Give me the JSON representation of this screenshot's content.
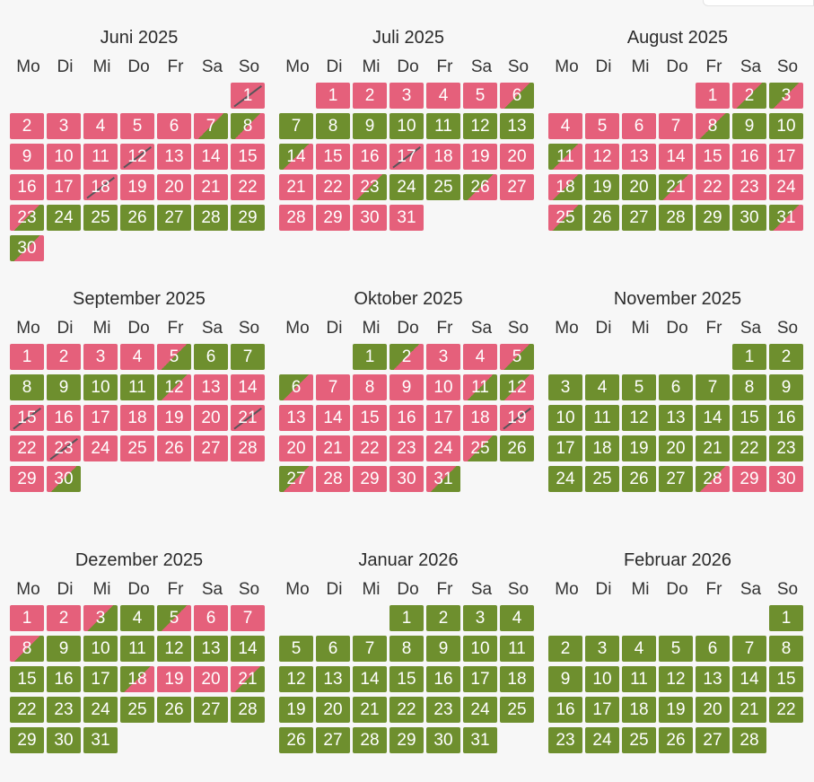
{
  "colors": {
    "booked": "#e5607b",
    "available": "#6e8f2e"
  },
  "weekdays": [
    "Mo",
    "Di",
    "Mi",
    "Do",
    "Fr",
    "Sa",
    "So"
  ],
  "months": [
    {
      "title": "Juni 2025",
      "offset": 6,
      "days": [
        [
          "1",
          "r",
          "sl"
        ],
        [
          "2",
          "r"
        ],
        [
          "3",
          "r"
        ],
        [
          "4",
          "r"
        ],
        [
          "5",
          "r"
        ],
        [
          "6",
          "r"
        ],
        [
          "7",
          "rg"
        ],
        [
          "8",
          "gr"
        ],
        [
          "9",
          "r"
        ],
        [
          "10",
          "r"
        ],
        [
          "11",
          "r"
        ],
        [
          "12",
          "r",
          "sl"
        ],
        [
          "13",
          "r"
        ],
        [
          "14",
          "r"
        ],
        [
          "15",
          "r"
        ],
        [
          "16",
          "r"
        ],
        [
          "17",
          "r"
        ],
        [
          "18",
          "r",
          "sl"
        ],
        [
          "19",
          "r"
        ],
        [
          "20",
          "r"
        ],
        [
          "21",
          "r"
        ],
        [
          "22",
          "r"
        ],
        [
          "23",
          "rg"
        ],
        [
          "24",
          "g"
        ],
        [
          "25",
          "g"
        ],
        [
          "26",
          "g"
        ],
        [
          "27",
          "g"
        ],
        [
          "28",
          "g"
        ],
        [
          "29",
          "g"
        ],
        [
          "30",
          "gr"
        ]
      ]
    },
    {
      "title": "Juli 2025",
      "offset": 1,
      "days": [
        [
          "1",
          "r"
        ],
        [
          "2",
          "r"
        ],
        [
          "3",
          "r"
        ],
        [
          "4",
          "r"
        ],
        [
          "5",
          "r"
        ],
        [
          "6",
          "rg"
        ],
        [
          "7",
          "g"
        ],
        [
          "8",
          "g"
        ],
        [
          "9",
          "g"
        ],
        [
          "10",
          "g"
        ],
        [
          "11",
          "g"
        ],
        [
          "12",
          "g"
        ],
        [
          "13",
          "g"
        ],
        [
          "14",
          "gr"
        ],
        [
          "15",
          "r"
        ],
        [
          "16",
          "r"
        ],
        [
          "17",
          "r",
          "sl"
        ],
        [
          "18",
          "r"
        ],
        [
          "19",
          "r"
        ],
        [
          "20",
          "r"
        ],
        [
          "21",
          "r"
        ],
        [
          "22",
          "r"
        ],
        [
          "23",
          "rg"
        ],
        [
          "24",
          "g"
        ],
        [
          "25",
          "g"
        ],
        [
          "26",
          "gr"
        ],
        [
          "27",
          "r"
        ],
        [
          "28",
          "r"
        ],
        [
          "29",
          "r"
        ],
        [
          "30",
          "r"
        ],
        [
          "31",
          "r"
        ]
      ]
    },
    {
      "title": "August 2025",
      "offset": 4,
      "days": [
        [
          "1",
          "r"
        ],
        [
          "2",
          "rg"
        ],
        [
          "3",
          "gr"
        ],
        [
          "4",
          "r"
        ],
        [
          "5",
          "r"
        ],
        [
          "6",
          "r"
        ],
        [
          "7",
          "r"
        ],
        [
          "8",
          "rg"
        ],
        [
          "9",
          "g"
        ],
        [
          "10",
          "g"
        ],
        [
          "11",
          "gr"
        ],
        [
          "12",
          "r"
        ],
        [
          "13",
          "r"
        ],
        [
          "14",
          "r"
        ],
        [
          "15",
          "r"
        ],
        [
          "16",
          "r"
        ],
        [
          "17",
          "r"
        ],
        [
          "18",
          "rg"
        ],
        [
          "19",
          "g"
        ],
        [
          "20",
          "g"
        ],
        [
          "21",
          "gr"
        ],
        [
          "22",
          "r"
        ],
        [
          "23",
          "r"
        ],
        [
          "24",
          "r"
        ],
        [
          "25",
          "rg"
        ],
        [
          "26",
          "g"
        ],
        [
          "27",
          "g"
        ],
        [
          "28",
          "g"
        ],
        [
          "29",
          "g"
        ],
        [
          "30",
          "g"
        ],
        [
          "31",
          "gr"
        ]
      ]
    },
    {
      "title": "September 2025",
      "offset": 0,
      "days": [
        [
          "1",
          "r"
        ],
        [
          "2",
          "r"
        ],
        [
          "3",
          "r"
        ],
        [
          "4",
          "r"
        ],
        [
          "5",
          "rg"
        ],
        [
          "6",
          "g"
        ],
        [
          "7",
          "g"
        ],
        [
          "8",
          "g"
        ],
        [
          "9",
          "g"
        ],
        [
          "10",
          "g"
        ],
        [
          "11",
          "g"
        ],
        [
          "12",
          "gr"
        ],
        [
          "13",
          "r"
        ],
        [
          "14",
          "r"
        ],
        [
          "15",
          "r",
          "sl"
        ],
        [
          "16",
          "r"
        ],
        [
          "17",
          "r"
        ],
        [
          "18",
          "r"
        ],
        [
          "19",
          "r"
        ],
        [
          "20",
          "r"
        ],
        [
          "21",
          "r",
          "sl"
        ],
        [
          "22",
          "r"
        ],
        [
          "23",
          "r",
          "sl"
        ],
        [
          "24",
          "r"
        ],
        [
          "25",
          "r"
        ],
        [
          "26",
          "r"
        ],
        [
          "27",
          "r"
        ],
        [
          "28",
          "r"
        ],
        [
          "29",
          "r"
        ],
        [
          "30",
          "rg"
        ]
      ]
    },
    {
      "title": "Oktober 2025",
      "offset": 2,
      "days": [
        [
          "1",
          "g"
        ],
        [
          "2",
          "gr"
        ],
        [
          "3",
          "r"
        ],
        [
          "4",
          "r"
        ],
        [
          "5",
          "rg"
        ],
        [
          "6",
          "gr"
        ],
        [
          "7",
          "r"
        ],
        [
          "8",
          "r"
        ],
        [
          "9",
          "r"
        ],
        [
          "10",
          "r"
        ],
        [
          "11",
          "rg"
        ],
        [
          "12",
          "gr"
        ],
        [
          "13",
          "r"
        ],
        [
          "14",
          "r"
        ],
        [
          "15",
          "r"
        ],
        [
          "16",
          "r"
        ],
        [
          "17",
          "r"
        ],
        [
          "18",
          "r"
        ],
        [
          "19",
          "r",
          "sl"
        ],
        [
          "20",
          "r"
        ],
        [
          "21",
          "r"
        ],
        [
          "22",
          "r"
        ],
        [
          "23",
          "r"
        ],
        [
          "24",
          "r"
        ],
        [
          "25",
          "rg"
        ],
        [
          "26",
          "g"
        ],
        [
          "27",
          "gr"
        ],
        [
          "28",
          "r"
        ],
        [
          "29",
          "r"
        ],
        [
          "30",
          "r"
        ],
        [
          "31",
          "rg"
        ]
      ]
    },
    {
      "title": "November 2025",
      "offset": 5,
      "days": [
        [
          "1",
          "g"
        ],
        [
          "2",
          "g"
        ],
        [
          "3",
          "g"
        ],
        [
          "4",
          "g"
        ],
        [
          "5",
          "g"
        ],
        [
          "6",
          "g"
        ],
        [
          "7",
          "g"
        ],
        [
          "8",
          "g"
        ],
        [
          "9",
          "g"
        ],
        [
          "10",
          "g"
        ],
        [
          "11",
          "g"
        ],
        [
          "12",
          "g"
        ],
        [
          "13",
          "g"
        ],
        [
          "14",
          "g"
        ],
        [
          "15",
          "g"
        ],
        [
          "16",
          "g"
        ],
        [
          "17",
          "g"
        ],
        [
          "18",
          "g"
        ],
        [
          "19",
          "g"
        ],
        [
          "20",
          "g"
        ],
        [
          "21",
          "g"
        ],
        [
          "22",
          "g"
        ],
        [
          "23",
          "g"
        ],
        [
          "24",
          "g"
        ],
        [
          "25",
          "g"
        ],
        [
          "26",
          "g"
        ],
        [
          "27",
          "g"
        ],
        [
          "28",
          "gr"
        ],
        [
          "29",
          "r"
        ],
        [
          "30",
          "r"
        ]
      ]
    },
    {
      "title": "Dezember 2025",
      "offset": 0,
      "days": [
        [
          "1",
          "r"
        ],
        [
          "2",
          "r"
        ],
        [
          "3",
          "rg"
        ],
        [
          "4",
          "g"
        ],
        [
          "5",
          "gr"
        ],
        [
          "6",
          "r"
        ],
        [
          "7",
          "r"
        ],
        [
          "8",
          "rg"
        ],
        [
          "9",
          "g"
        ],
        [
          "10",
          "g"
        ],
        [
          "11",
          "g"
        ],
        [
          "12",
          "g"
        ],
        [
          "13",
          "g"
        ],
        [
          "14",
          "g"
        ],
        [
          "15",
          "g"
        ],
        [
          "16",
          "g"
        ],
        [
          "17",
          "g"
        ],
        [
          "18",
          "gr"
        ],
        [
          "19",
          "r"
        ],
        [
          "20",
          "r"
        ],
        [
          "21",
          "rg"
        ],
        [
          "22",
          "g"
        ],
        [
          "23",
          "g"
        ],
        [
          "24",
          "g"
        ],
        [
          "25",
          "g"
        ],
        [
          "26",
          "g"
        ],
        [
          "27",
          "g"
        ],
        [
          "28",
          "g"
        ],
        [
          "29",
          "g"
        ],
        [
          "30",
          "g"
        ],
        [
          "31",
          "g"
        ]
      ]
    },
    {
      "title": "Januar 2026",
      "offset": 3,
      "days": [
        [
          "1",
          "g"
        ],
        [
          "2",
          "g"
        ],
        [
          "3",
          "g"
        ],
        [
          "4",
          "g"
        ],
        [
          "5",
          "g"
        ],
        [
          "6",
          "g"
        ],
        [
          "7",
          "g"
        ],
        [
          "8",
          "g"
        ],
        [
          "9",
          "g"
        ],
        [
          "10",
          "g"
        ],
        [
          "11",
          "g"
        ],
        [
          "12",
          "g"
        ],
        [
          "13",
          "g"
        ],
        [
          "14",
          "g"
        ],
        [
          "15",
          "g"
        ],
        [
          "16",
          "g"
        ],
        [
          "17",
          "g"
        ],
        [
          "18",
          "g"
        ],
        [
          "19",
          "g"
        ],
        [
          "20",
          "g"
        ],
        [
          "21",
          "g"
        ],
        [
          "22",
          "g"
        ],
        [
          "23",
          "g"
        ],
        [
          "24",
          "g"
        ],
        [
          "25",
          "g"
        ],
        [
          "26",
          "g"
        ],
        [
          "27",
          "g"
        ],
        [
          "28",
          "g"
        ],
        [
          "29",
          "g"
        ],
        [
          "30",
          "g"
        ],
        [
          "31",
          "g"
        ]
      ]
    },
    {
      "title": "Februar 2026",
      "offset": 6,
      "days": [
        [
          "1",
          "g"
        ],
        [
          "2",
          "g"
        ],
        [
          "3",
          "g"
        ],
        [
          "4",
          "g"
        ],
        [
          "5",
          "g"
        ],
        [
          "6",
          "g"
        ],
        [
          "7",
          "g"
        ],
        [
          "8",
          "g"
        ],
        [
          "9",
          "g"
        ],
        [
          "10",
          "g"
        ],
        [
          "11",
          "g"
        ],
        [
          "12",
          "g"
        ],
        [
          "13",
          "g"
        ],
        [
          "14",
          "g"
        ],
        [
          "15",
          "g"
        ],
        [
          "16",
          "g"
        ],
        [
          "17",
          "g"
        ],
        [
          "18",
          "g"
        ],
        [
          "19",
          "g"
        ],
        [
          "20",
          "g"
        ],
        [
          "21",
          "g"
        ],
        [
          "22",
          "g"
        ],
        [
          "23",
          "g"
        ],
        [
          "24",
          "g"
        ],
        [
          "25",
          "g"
        ],
        [
          "26",
          "g"
        ],
        [
          "27",
          "g"
        ],
        [
          "28",
          "g"
        ]
      ]
    }
  ]
}
